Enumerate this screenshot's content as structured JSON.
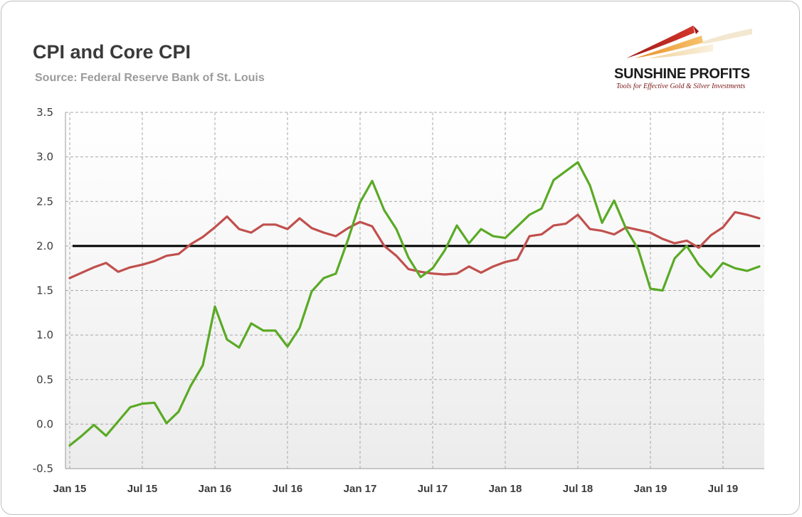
{
  "title": "CPI and Core CPI",
  "subtitle": "Source: Federal Reserve Bank of St. Louis",
  "logo": {
    "name": "SUNSHINE PROFITS",
    "tagline": "Tools for Effective Gold & Silver Investments"
  },
  "chart_data": {
    "type": "line",
    "title": "CPI and Core CPI",
    "subtitle": "Source: Federal Reserve Bank of St. Louis",
    "x_tick_labels": [
      "Jan 15",
      "Jul 15",
      "Jan 16",
      "Jul 16",
      "Jan 17",
      "Jul 17",
      "Jan 18",
      "Jul 18",
      "Jan 19",
      "Jul 19"
    ],
    "x_tick_dates": [
      "2015-01",
      "2015-07",
      "2016-01",
      "2016-07",
      "2017-01",
      "2017-07",
      "2018-01",
      "2018-07",
      "2019-01",
      "2019-07"
    ],
    "x_range": [
      "2015-01",
      "2019-10"
    ],
    "ylim": [
      -0.5,
      3.5
    ],
    "y_ticks": [
      "-0.5",
      "0.0",
      "0.5",
      "1.0",
      "1.5",
      "2.0",
      "2.5",
      "3.0",
      "3.5"
    ],
    "grid": true,
    "legend": "none",
    "reference_line": {
      "y": 2.0,
      "color": "#000000"
    },
    "plot_background": [
      "#ffffff",
      "#ececec"
    ],
    "series": [
      {
        "color": "#c0504d",
        "x": [
          "2015-01",
          "2015-02",
          "2015-03",
          "2015-04",
          "2015-05",
          "2015-06",
          "2015-07",
          "2015-08",
          "2015-09",
          "2015-10",
          "2015-11",
          "2015-12",
          "2016-01",
          "2016-02",
          "2016-03",
          "2016-04",
          "2016-05",
          "2016-06",
          "2016-07",
          "2016-08",
          "2016-09",
          "2016-10",
          "2016-11",
          "2016-12",
          "2017-01",
          "2017-02",
          "2017-03",
          "2017-04",
          "2017-05",
          "2017-06",
          "2017-07",
          "2017-08",
          "2017-09",
          "2017-10",
          "2017-11",
          "2017-12",
          "2018-01",
          "2018-02",
          "2018-03",
          "2018-04",
          "2018-05",
          "2018-06",
          "2018-07",
          "2018-08",
          "2018-09",
          "2018-10",
          "2018-11",
          "2018-12",
          "2019-01",
          "2019-02",
          "2019-03",
          "2019-04",
          "2019-05",
          "2019-06",
          "2019-07",
          "2019-08",
          "2019-09",
          "2019-10"
        ],
        "values": [
          1.64,
          1.7,
          1.76,
          1.81,
          1.71,
          1.76,
          1.79,
          1.83,
          1.89,
          1.91,
          2.02,
          2.1,
          2.21,
          2.33,
          2.19,
          2.15,
          2.24,
          2.24,
          2.19,
          2.31,
          2.2,
          2.15,
          2.11,
          2.2,
          2.27,
          2.22,
          2.0,
          1.89,
          1.74,
          1.71,
          1.69,
          1.68,
          1.69,
          1.77,
          1.7,
          1.77,
          1.82,
          1.85,
          2.11,
          2.13,
          2.23,
          2.25,
          2.35,
          2.19,
          2.17,
          2.13,
          2.21,
          2.18,
          2.15,
          2.08,
          2.03,
          2.06,
          1.98,
          2.12,
          2.21,
          2.38,
          2.35,
          2.31
        ]
      },
      {
        "color": "#5aaa25",
        "x": [
          "2015-01",
          "2015-02",
          "2015-03",
          "2015-04",
          "2015-05",
          "2015-06",
          "2015-07",
          "2015-08",
          "2015-09",
          "2015-10",
          "2015-11",
          "2015-12",
          "2016-01",
          "2016-02",
          "2016-03",
          "2016-04",
          "2016-05",
          "2016-06",
          "2016-07",
          "2016-08",
          "2016-09",
          "2016-10",
          "2016-11",
          "2016-12",
          "2017-01",
          "2017-02",
          "2017-03",
          "2017-04",
          "2017-05",
          "2017-06",
          "2017-07",
          "2017-08",
          "2017-09",
          "2017-10",
          "2017-11",
          "2017-12",
          "2018-01",
          "2018-02",
          "2018-03",
          "2018-04",
          "2018-05",
          "2018-06",
          "2018-07",
          "2018-08",
          "2018-09",
          "2018-10",
          "2018-11",
          "2018-12",
          "2019-01",
          "2019-02",
          "2019-03",
          "2019-04",
          "2019-05",
          "2019-06",
          "2019-07",
          "2019-08",
          "2019-09",
          "2019-10"
        ],
        "values": [
          -0.24,
          -0.13,
          -0.01,
          -0.13,
          0.03,
          0.19,
          0.23,
          0.24,
          0.01,
          0.14,
          0.43,
          0.66,
          1.32,
          0.95,
          0.86,
          1.13,
          1.05,
          1.05,
          0.87,
          1.08,
          1.49,
          1.64,
          1.69,
          2.07,
          2.49,
          2.73,
          2.4,
          2.19,
          1.87,
          1.65,
          1.75,
          1.95,
          2.23,
          2.03,
          2.19,
          2.11,
          2.09,
          2.22,
          2.35,
          2.42,
          2.74,
          2.84,
          2.94,
          2.68,
          2.26,
          2.51,
          2.19,
          1.96,
          1.52,
          1.5,
          1.86,
          2.0,
          1.79,
          1.65,
          1.81,
          1.75,
          1.72,
          1.77
        ]
      }
    ]
  }
}
